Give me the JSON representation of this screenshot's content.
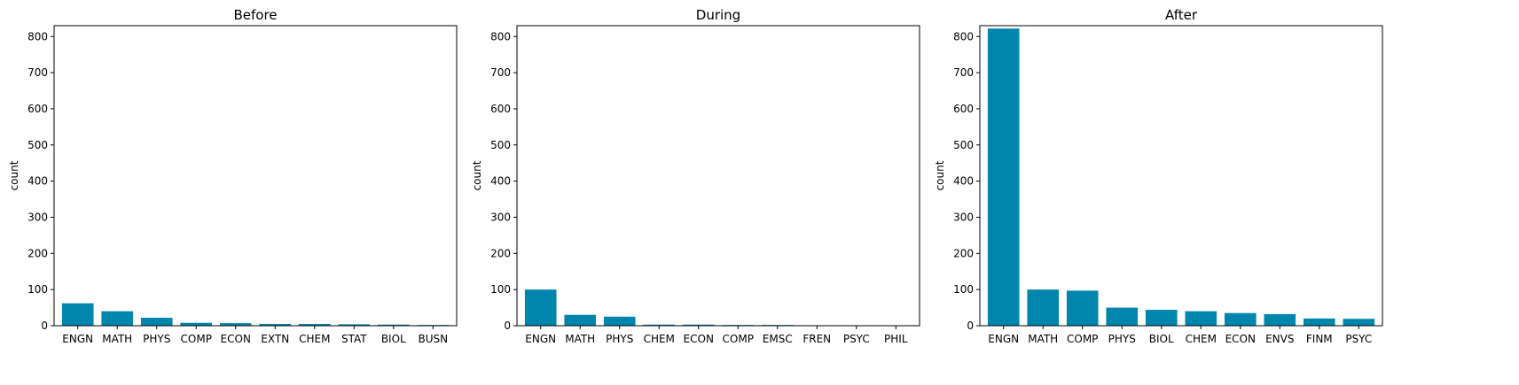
{
  "colors": {
    "bar": "#0086ad"
  },
  "chart_data": [
    {
      "type": "bar",
      "title": "Before",
      "xlabel": "",
      "ylabel": "count",
      "ylim": [
        0,
        830
      ],
      "yticks": [
        0,
        100,
        200,
        300,
        400,
        500,
        600,
        700,
        800
      ],
      "categories": [
        "ENGN",
        "MATH",
        "PHYS",
        "COMP",
        "ECON",
        "EXTN",
        "CHEM",
        "STAT",
        "BIOL",
        "BUSN"
      ],
      "values": [
        62,
        40,
        22,
        8,
        7,
        5,
        5,
        4,
        3,
        2
      ]
    },
    {
      "type": "bar",
      "title": "During",
      "xlabel": "",
      "ylabel": "count",
      "ylim": [
        0,
        830
      ],
      "yticks": [
        0,
        100,
        200,
        300,
        400,
        500,
        600,
        700,
        800
      ],
      "categories": [
        "ENGN",
        "MATH",
        "PHYS",
        "CHEM",
        "ECON",
        "COMP",
        "EMSC",
        "FREN",
        "PSYC",
        "PHIL"
      ],
      "values": [
        100,
        30,
        25,
        3,
        3,
        2,
        2,
        1,
        1,
        1
      ]
    },
    {
      "type": "bar",
      "title": "After",
      "xlabel": "",
      "ylabel": "count",
      "ylim": [
        0,
        830
      ],
      "yticks": [
        0,
        100,
        200,
        300,
        400,
        500,
        600,
        700,
        800
      ],
      "categories": [
        "ENGN",
        "MATH",
        "COMP",
        "PHYS",
        "BIOL",
        "CHEM",
        "ECON",
        "ENVS",
        "FINM",
        "PSYC"
      ],
      "values": [
        822,
        100,
        97,
        50,
        44,
        40,
        35,
        32,
        20,
        19
      ]
    }
  ]
}
